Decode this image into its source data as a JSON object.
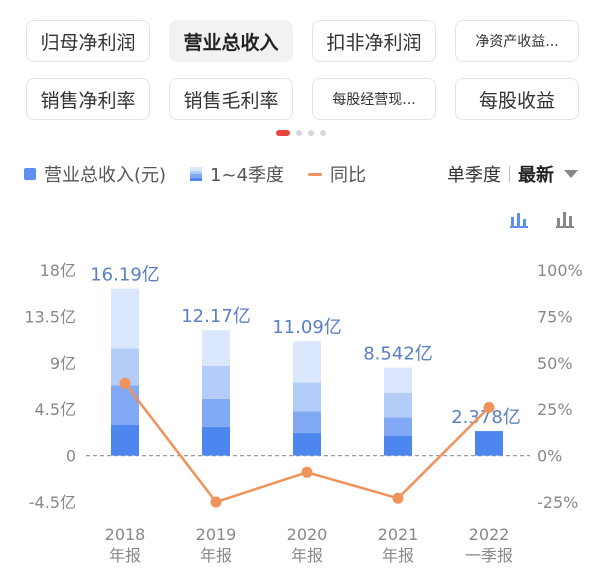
{
  "metric_tabs": [
    {
      "label": "归母净利润",
      "active": false
    },
    {
      "label": "营业总收入",
      "active": true
    },
    {
      "label": "扣非净利润",
      "active": false
    },
    {
      "label": "净资产收益...",
      "active": false
    },
    {
      "label": "销售净利率",
      "active": false
    },
    {
      "label": "销售毛利率",
      "active": false
    },
    {
      "label": "每股经营现...",
      "active": false
    },
    {
      "label": "每股收益",
      "active": false
    }
  ],
  "legend": {
    "revenue": "营业总收入(元)",
    "quarters": "1~4季度",
    "yoy": "同比"
  },
  "period": {
    "mode": "单季度",
    "latest": "最新"
  },
  "colors": {
    "q1": "#4d86ee",
    "q2": "#81a9f5",
    "q3": "#b4cdf8",
    "q4": "#dbe7fc",
    "line": "#f0935b",
    "axis_text": "#888888",
    "value_label": "#5b7fc4"
  },
  "chart_data": {
    "type": "bar+line",
    "categories": [
      "2018\n年报",
      "2019\n年报",
      "2020\n年报",
      "2021\n年报",
      "2022\n一季报"
    ],
    "x_labels": [
      [
        "2018",
        "年报"
      ],
      [
        "2019",
        "年报"
      ],
      [
        "2020",
        "年报"
      ],
      [
        "2021",
        "年报"
      ],
      [
        "2022",
        "一季报"
      ]
    ],
    "left_axis": {
      "ticks": [
        18,
        13.5,
        9,
        4.5,
        0,
        -4.5
      ],
      "tick_labels": [
        "18亿",
        "13.5亿",
        "9亿",
        "4.5亿",
        "0",
        "-4.5亿"
      ],
      "range": [
        -4.5,
        18
      ]
    },
    "right_axis": {
      "ticks": [
        100,
        75,
        50,
        25,
        0,
        -25
      ],
      "tick_labels": [
        "100%",
        "75%",
        "50%",
        "25%",
        "0%",
        "-25%"
      ],
      "range": [
        -25,
        100
      ]
    },
    "stacks": [
      [
        3.0,
        3.8,
        3.6,
        5.79
      ],
      [
        2.8,
        2.7,
        3.2,
        3.47
      ],
      [
        2.2,
        2.1,
        2.8,
        3.99
      ],
      [
        1.9,
        1.8,
        2.4,
        2.44
      ],
      [
        2.378
      ]
    ],
    "totals": [
      16.19,
      12.17,
      11.09,
      8.542,
      2.378
    ],
    "total_labels": [
      "16.19亿",
      "12.17亿",
      "11.09亿",
      "8.542亿",
      "2.378亿"
    ],
    "yoy_percent": [
      39,
      -25,
      -9,
      -23,
      26
    ],
    "grid": "dashed zero line only"
  }
}
